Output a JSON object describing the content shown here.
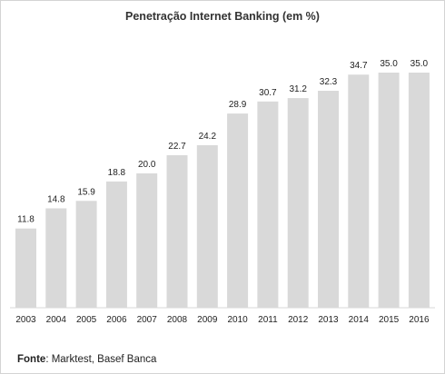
{
  "chart_data": {
    "type": "bar",
    "title": "Penetração Internet Banking (em %)",
    "categories": [
      "2003",
      "2004",
      "2005",
      "2006",
      "2007",
      "2008",
      "2009",
      "2010",
      "2011",
      "2012",
      "2013",
      "2014",
      "2015",
      "2016"
    ],
    "values": [
      11.8,
      14.8,
      15.9,
      18.8,
      20.0,
      22.7,
      24.2,
      28.9,
      30.7,
      31.2,
      32.3,
      34.7,
      35.0,
      35.0
    ],
    "value_labels": [
      "11.8",
      "14.8",
      "15.9",
      "18.8",
      "20.0",
      "22.7",
      "24.2",
      "28.9",
      "30.7",
      "31.2",
      "32.3",
      "34.7",
      "35.0",
      "35.0"
    ],
    "xlabel": "",
    "ylabel": "",
    "ylim": [
      0,
      35.0
    ],
    "grid": false,
    "legend": "none",
    "bar_color": "#d9d9d9"
  },
  "source": {
    "label": "Fonte",
    "text": ": Marktest, Basef Banca"
  }
}
